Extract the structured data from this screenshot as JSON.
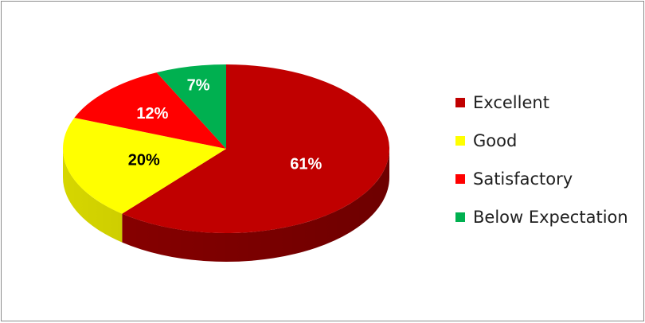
{
  "chart_data": {
    "type": "pie",
    "style": "3d",
    "legend_position": "right",
    "slices": [
      {
        "label": "Excellent",
        "value": 61,
        "display": "61%",
        "color": "#c00000",
        "side_color": "#8b0000",
        "label_color": "#ffffff"
      },
      {
        "label": "Good",
        "value": 20,
        "display": "20%",
        "color": "#ffff00",
        "side_color": "#d6d600",
        "label_color": "#000000"
      },
      {
        "label": "Satisfactory",
        "value": 12,
        "display": "12%",
        "color": "#ff0000",
        "side_color": "#c40000",
        "label_color": "#ffffff"
      },
      {
        "label": "Below Expectation",
        "value": 7,
        "display": "7%",
        "color": "#00b050",
        "side_color": "#00823b",
        "label_color": "#ffffff"
      }
    ]
  }
}
